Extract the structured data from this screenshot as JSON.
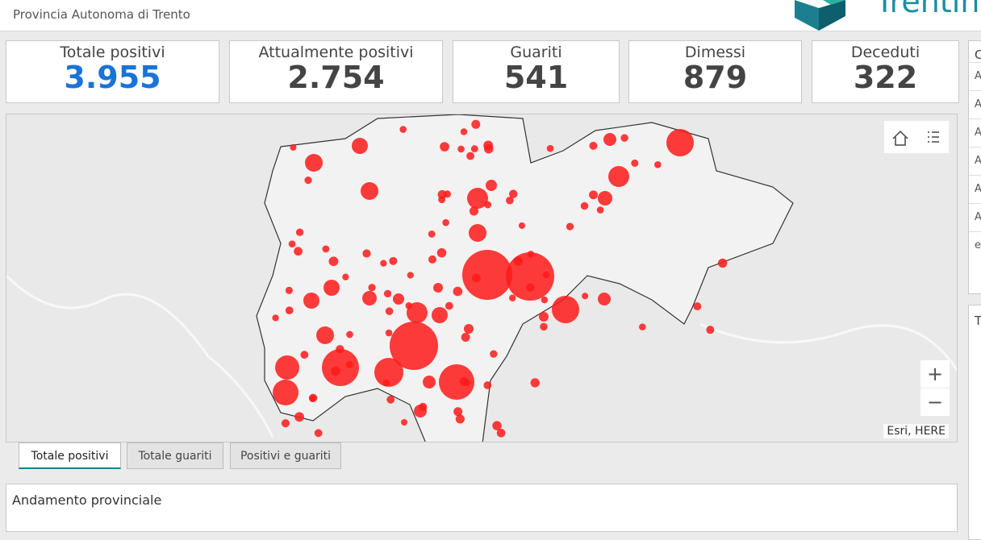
{
  "header": {
    "title": "Provincia Autonoma di Trento",
    "logo_text": "Trentino"
  },
  "kpis": [
    {
      "label": "Totale positivi",
      "value": "3.955"
    },
    {
      "label": "Attualmente positivi",
      "value": "2.754"
    },
    {
      "label": "Guariti",
      "value": "541"
    },
    {
      "label": "Dimessi",
      "value": "879"
    },
    {
      "label": "Deceduti",
      "value": "322"
    }
  ],
  "map": {
    "attribution": "Esri, HERE",
    "zoom_in": "+",
    "zoom_out": "−"
  },
  "tabs": [
    "Totale positivi",
    "Totale guariti",
    "Positivi e guariti"
  ],
  "chart_panel": {
    "title": "Andamento provinciale"
  },
  "side_panels": {
    "top_title": "C",
    "top_items": [
      "A",
      "A",
      "A",
      "A",
      "A",
      "A",
      "e"
    ],
    "bottom_title": "T"
  }
}
